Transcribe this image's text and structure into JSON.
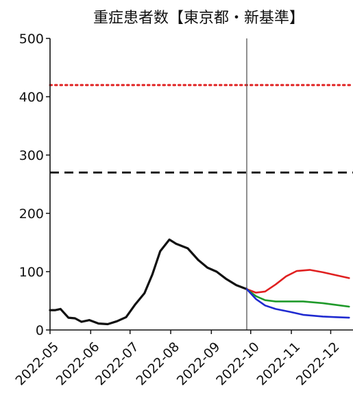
{
  "chart_data": {
    "type": "line",
    "title": "重症患者数【東京都・新基準】",
    "xlabel": "",
    "ylabel": "",
    "ylim": [
      0,
      500
    ],
    "yticks": [
      0,
      100,
      200,
      300,
      400,
      500
    ],
    "xticks": [
      "2022-05",
      "2022-06",
      "2022-07",
      "2022-08",
      "2022-09",
      "2022-10",
      "2022-11",
      "2022-12"
    ],
    "grid": false,
    "legend": "none",
    "reference_lines": [
      {
        "y": 420,
        "color": "#e02020",
        "style": "dotted"
      },
      {
        "y": 270,
        "color": "#222222",
        "style": "dashed"
      }
    ],
    "vertical_marker": {
      "x": "2022-09-28",
      "color": "#555555"
    },
    "series": [
      {
        "color": "#111111",
        "points": [
          [
            "2022-05-01",
            34
          ],
          [
            "2022-05-05",
            34
          ],
          [
            "2022-05-09",
            36
          ],
          [
            "2022-05-15",
            21
          ],
          [
            "2022-05-20",
            20
          ],
          [
            "2022-05-25",
            14
          ],
          [
            "2022-05-31",
            17
          ],
          [
            "2022-06-07",
            11
          ],
          [
            "2022-06-14",
            10
          ],
          [
            "2022-06-21",
            15
          ],
          [
            "2022-06-28",
            22
          ],
          [
            "2022-07-05",
            44
          ],
          [
            "2022-07-12",
            63
          ],
          [
            "2022-07-18",
            95
          ],
          [
            "2022-07-24",
            135
          ],
          [
            "2022-07-31",
            155
          ],
          [
            "2022-08-05",
            148
          ],
          [
            "2022-08-14",
            140
          ],
          [
            "2022-08-22",
            120
          ],
          [
            "2022-08-29",
            107
          ],
          [
            "2022-09-05",
            100
          ],
          [
            "2022-09-12",
            88
          ],
          [
            "2022-09-20",
            77
          ],
          [
            "2022-09-28",
            70
          ]
        ]
      },
      {
        "color": "#e02020",
        "points": [
          [
            "2022-09-28",
            70
          ],
          [
            "2022-10-05",
            64
          ],
          [
            "2022-10-12",
            66
          ],
          [
            "2022-10-20",
            78
          ],
          [
            "2022-10-28",
            92
          ],
          [
            "2022-11-05",
            101
          ],
          [
            "2022-11-15",
            103
          ],
          [
            "2022-11-25",
            99
          ],
          [
            "2022-12-05",
            94
          ],
          [
            "2022-12-15",
            89
          ]
        ]
      },
      {
        "color": "#1f9a2a",
        "points": [
          [
            "2022-09-28",
            70
          ],
          [
            "2022-10-05",
            58
          ],
          [
            "2022-10-12",
            51
          ],
          [
            "2022-10-20",
            49
          ],
          [
            "2022-10-31",
            49
          ],
          [
            "2022-11-10",
            49
          ],
          [
            "2022-11-25",
            46
          ],
          [
            "2022-12-05",
            43
          ],
          [
            "2022-12-15",
            40
          ]
        ]
      },
      {
        "color": "#1f2ad0",
        "points": [
          [
            "2022-09-28",
            70
          ],
          [
            "2022-10-05",
            53
          ],
          [
            "2022-10-12",
            42
          ],
          [
            "2022-10-20",
            36
          ],
          [
            "2022-10-31",
            31
          ],
          [
            "2022-11-10",
            26
          ],
          [
            "2022-11-25",
            23
          ],
          [
            "2022-12-05",
            22
          ],
          [
            "2022-12-15",
            21
          ]
        ]
      }
    ]
  }
}
